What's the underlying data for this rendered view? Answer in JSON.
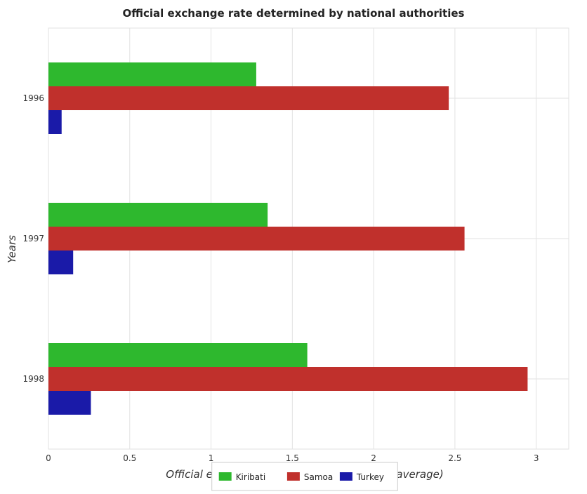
{
  "chart_data": {
    "type": "bar",
    "orientation": "horizontal",
    "title": "Official exchange rate determined by national authorities",
    "xlabel": "Official exchange rate (LCU per US$ period average)",
    "ylabel": "Years",
    "categories": [
      "1996",
      "1997",
      "1998"
    ],
    "series": [
      {
        "name": "Kiribati",
        "color": "#2eb82e",
        "values": [
          1.278,
          1.348,
          1.592
        ]
      },
      {
        "name": "Samoa",
        "color": "#c0302c",
        "values": [
          2.462,
          2.559,
          2.947
        ]
      },
      {
        "name": "Turkey",
        "color": "#1a1aa8",
        "values": [
          0.081,
          0.152,
          0.261
        ]
      }
    ],
    "xlim": [
      0,
      3.2
    ],
    "xticks": [
      "0",
      "0.5",
      "1",
      "1.5",
      "2",
      "2.5",
      "3"
    ],
    "grid": true,
    "legend_position": "bottom"
  }
}
